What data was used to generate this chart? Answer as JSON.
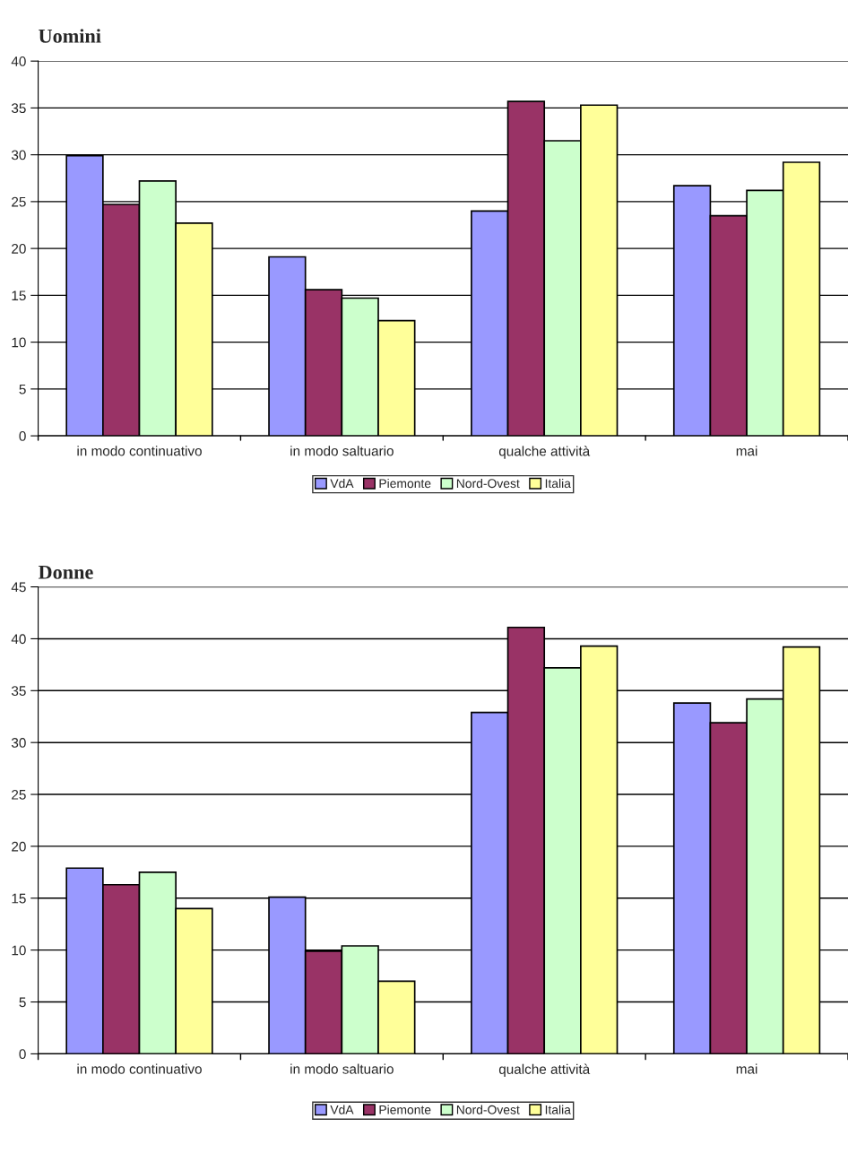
{
  "chart_data": [
    {
      "type": "bar",
      "title": "Uomini",
      "categories": [
        "in modo continuativo",
        "in modo saltuario",
        "qualche attività",
        "mai"
      ],
      "series": [
        {
          "name": "VdA",
          "color": "#9999ff",
          "values": [
            29.9,
            19.1,
            24.0,
            26.7
          ]
        },
        {
          "name": "Piemonte",
          "color": "#993366",
          "values": [
            24.7,
            15.6,
            35.7,
            23.5
          ]
        },
        {
          "name": "Nord-Ovest",
          "color": "#ccffcc",
          "values": [
            27.2,
            14.7,
            31.5,
            26.2
          ]
        },
        {
          "name": "Italia",
          "color": "#ffff99",
          "values": [
            22.7,
            12.3,
            35.3,
            29.2
          ]
        }
      ],
      "ylim": [
        0,
        40
      ],
      "yticks": [
        0,
        5,
        10,
        15,
        20,
        25,
        30,
        35,
        40
      ],
      "grid": "y",
      "legend": "bottom"
    },
    {
      "type": "bar",
      "title": "Donne",
      "categories": [
        "in modo continuativo",
        "in modo saltuario",
        "qualche attività",
        "mai"
      ],
      "series": [
        {
          "name": "VdA",
          "color": "#9999ff",
          "values": [
            17.9,
            15.1,
            32.9,
            33.8
          ]
        },
        {
          "name": "Piemonte",
          "color": "#993366",
          "values": [
            16.3,
            9.9,
            41.1,
            31.9
          ]
        },
        {
          "name": "Nord-Ovest",
          "color": "#ccffcc",
          "values": [
            17.5,
            10.4,
            37.2,
            34.2
          ]
        },
        {
          "name": "Italia",
          "color": "#ffff99",
          "values": [
            14.0,
            7.0,
            39.3,
            39.2
          ]
        }
      ],
      "ylim": [
        0,
        45
      ],
      "yticks": [
        0,
        5,
        10,
        15,
        20,
        25,
        30,
        35,
        40,
        45
      ],
      "grid": "y",
      "legend": "bottom"
    }
  ]
}
